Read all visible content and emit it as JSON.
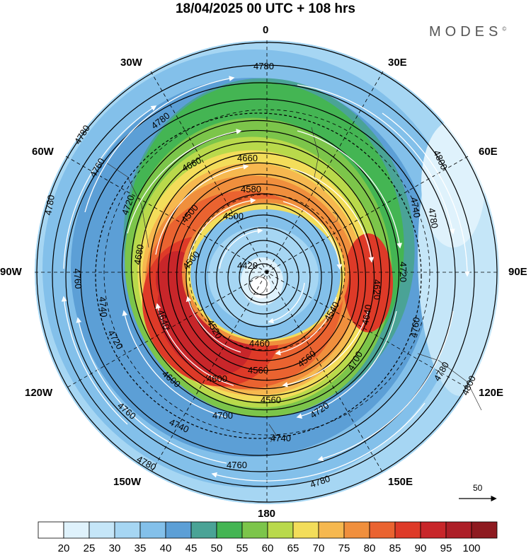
{
  "header": {
    "title": "18/04/2025  00 UTC  + 108 hrs",
    "brand": "MODES",
    "brand_mark": "©"
  },
  "map": {
    "projection": "south-polar-stereographic",
    "longitude_labels": [
      {
        "id": "0",
        "text": "0"
      },
      {
        "id": "30e",
        "text": "30E"
      },
      {
        "id": "60e",
        "text": "60E"
      },
      {
        "id": "90e",
        "text": "90E"
      },
      {
        "id": "120e",
        "text": "120E"
      },
      {
        "id": "150e",
        "text": "150E"
      },
      {
        "id": "180",
        "text": "180"
      },
      {
        "id": "150w",
        "text": "150W"
      },
      {
        "id": "120w",
        "text": "120W"
      },
      {
        "id": "90w",
        "text": "90W"
      },
      {
        "id": "60w",
        "text": "60W"
      },
      {
        "id": "30w",
        "text": "30W"
      }
    ],
    "contour_labels": [
      "4780",
      "4760",
      "4740",
      "4720",
      "4680",
      "4660",
      "4580",
      "4500",
      "4420",
      "4460",
      "4560",
      "4600",
      "4700",
      "4620",
      "4640",
      "4540",
      "4800",
      "4520"
    ],
    "reference_vector": "50"
  },
  "colorbar": {
    "ticks": [
      "20",
      "25",
      "30",
      "35",
      "40",
      "45",
      "50",
      "55",
      "60",
      "65",
      "70",
      "75",
      "80",
      "85",
      "90",
      "95",
      "100"
    ],
    "colors": [
      "#ffffff",
      "#dff2fc",
      "#c5e6f8",
      "#a6d6f3",
      "#83c0ea",
      "#5c9fd6",
      "#4aa396",
      "#44b553",
      "#7cc54a",
      "#b9d94b",
      "#f3dd5a",
      "#f6b84f",
      "#f08f3d",
      "#ea6330",
      "#de3a28",
      "#c8262a",
      "#ad1e27",
      "#8e1a20"
    ]
  }
}
